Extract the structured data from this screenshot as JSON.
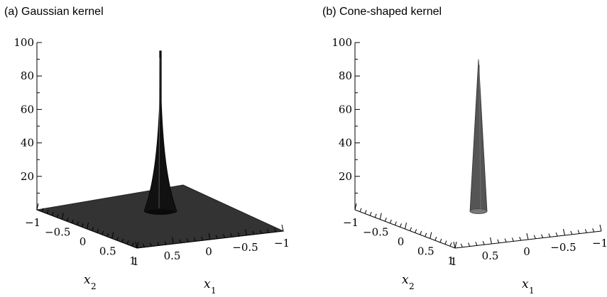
{
  "chart_data": [
    {
      "type": "surface3d",
      "title": "(a) Gaussian kernel",
      "surface": "gaussian",
      "zlim": [
        0,
        100
      ],
      "z_ticks": [
        "100",
        "80",
        "60",
        "40",
        "20"
      ],
      "x2_ticks": [
        "−1",
        "−0.5",
        "0",
        "0.5",
        "1"
      ],
      "x1_ticks": [
        "0.5",
        "0",
        "−0.5",
        "−1"
      ],
      "x1_far_tick": "1",
      "xlabel": {
        "var": "x",
        "sub": "1"
      },
      "ylabel": {
        "var": "x",
        "sub": "2"
      },
      "peak": 95,
      "base_plane": true,
      "surface_color": "#333333"
    },
    {
      "type": "surface3d",
      "title": "(b) Cone-shaped kernel",
      "surface": "cone",
      "zlim": [
        0,
        100
      ],
      "z_ticks": [
        "100",
        "80",
        "60",
        "40",
        "20"
      ],
      "x2_ticks": [
        "−1",
        "−0.5",
        "0",
        "0.5",
        "1"
      ],
      "x1_ticks": [
        "0.5",
        "0",
        "−0.5",
        "−1"
      ],
      "x1_far_tick": "1",
      "xlabel": {
        "var": "x",
        "sub": "1"
      },
      "ylabel": {
        "var": "x",
        "sub": "2"
      },
      "peak": 90,
      "base_plane": false,
      "surface_color": "#555555"
    }
  ]
}
